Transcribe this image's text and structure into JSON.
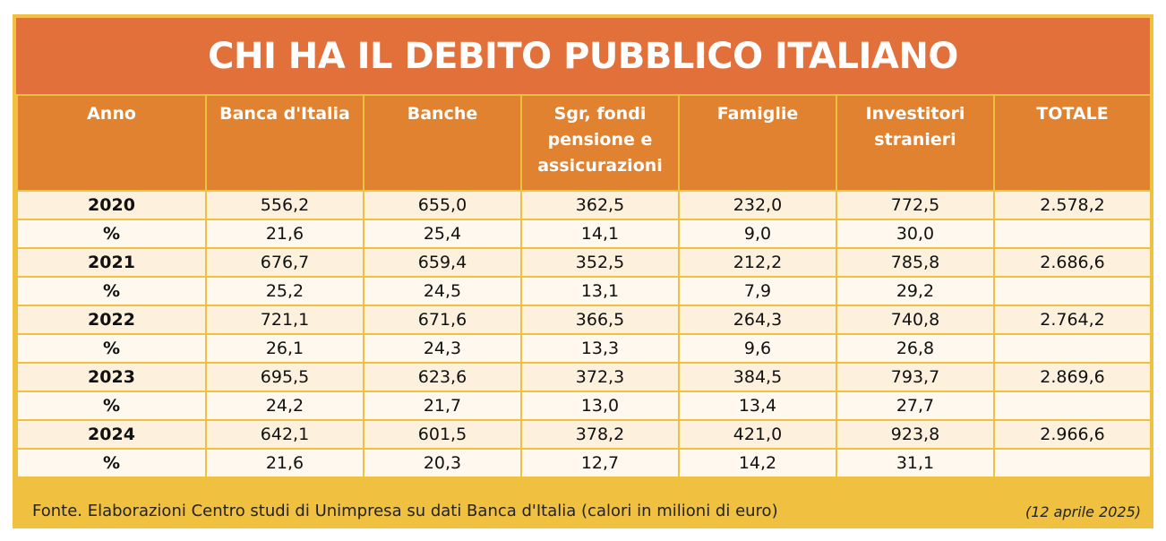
{
  "title": "CHI HA IL DEBITO PUBBLICO ITALIANO",
  "table": {
    "header": [
      "Anno",
      "Banca d'Italia",
      "Banche",
      "Sgr, fondi pensione e assicurazioni",
      "Famiglie",
      "Investitori stranieri",
      "TOTALE"
    ],
    "rows": [
      [
        "2020",
        "556,2",
        "655,0",
        "362,5",
        "232,0",
        "772,5",
        "2.578,2"
      ],
      [
        "%",
        "21,6",
        "25,4",
        "14,1",
        "9,0",
        "30,0",
        null
      ],
      [
        "2021",
        "676,7",
        "659,4",
        "352,5",
        "212,2",
        "785,8",
        "2.686,6"
      ],
      [
        "%",
        "25,2",
        "24,5",
        "13,1",
        "7,9",
        "29,2",
        null
      ],
      [
        "2022",
        "721,1",
        "671,6",
        "366,5",
        "264,3",
        "740,8",
        "2.764,2"
      ],
      [
        "%",
        "26,1",
        "24,3",
        "13,3",
        "9,6",
        "26,8",
        null
      ],
      [
        "2023",
        "695,5",
        "623,6",
        "372,3",
        "384,5",
        "793,7",
        "2.869,6"
      ],
      [
        "%",
        "24,2",
        "21,7",
        "13,0",
        "13,4",
        "27,7",
        null
      ],
      [
        "2024",
        "642,1",
        "601,5",
        "378,2",
        "421,0",
        "923,8",
        "2.966,6"
      ],
      [
        "%",
        "21,6",
        "20,3",
        "12,7",
        "14,2",
        "31,1",
        null
      ]
    ]
  },
  "footer": {
    "source": "Fonte. Elaborazioni Centro studi di Unimpresa su dati Banca d'Italia (calori in milioni di euro)",
    "date": "(12 aprile 2025)"
  }
}
